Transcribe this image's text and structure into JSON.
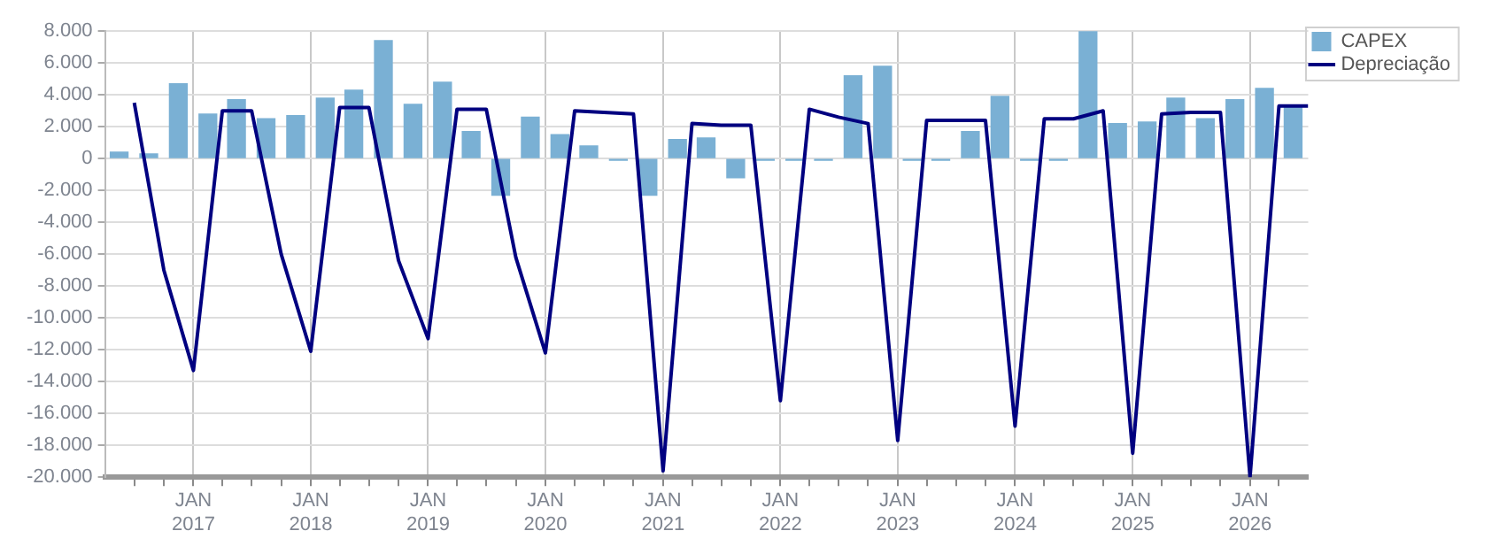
{
  "chart_data": {
    "type": "bar",
    "xlim": [
      "2016-04-01",
      "2026-07-01"
    ],
    "xticks": [
      {
        "value": "2016-07-01",
        "label": null
      },
      {
        "value": "2016-10-01",
        "label": null
      },
      {
        "value": "2017-01-01",
        "label": "JAN\n2017"
      },
      {
        "value": "2017-04-01",
        "label": null
      },
      {
        "value": "2017-07-01",
        "label": null
      },
      {
        "value": "2017-10-01",
        "label": null
      },
      {
        "value": "2018-01-01",
        "label": "JAN\n2018"
      },
      {
        "value": "2018-04-01",
        "label": null
      },
      {
        "value": "2018-07-01",
        "label": null
      },
      {
        "value": "2018-10-01",
        "label": null
      },
      {
        "value": "2019-01-01",
        "label": "JAN\n2019"
      },
      {
        "value": "2019-04-01",
        "label": null
      },
      {
        "value": "2019-07-01",
        "label": null
      },
      {
        "value": "2019-10-01",
        "label": null
      },
      {
        "value": "2020-01-01",
        "label": "JAN\n2020"
      },
      {
        "value": "2020-04-01",
        "label": null
      },
      {
        "value": "2020-07-01",
        "label": null
      },
      {
        "value": "2020-10-01",
        "label": null
      },
      {
        "value": "2021-01-01",
        "label": "JAN\n2021"
      },
      {
        "value": "2021-04-01",
        "label": null
      },
      {
        "value": "2021-07-01",
        "label": null
      },
      {
        "value": "2021-10-01",
        "label": null
      },
      {
        "value": "2022-01-01",
        "label": "JAN\n2022"
      },
      {
        "value": "2022-04-01",
        "label": null
      },
      {
        "value": "2022-07-01",
        "label": null
      },
      {
        "value": "2022-10-01",
        "label": null
      },
      {
        "value": "2023-01-01",
        "label": "JAN\n2023"
      },
      {
        "value": "2023-04-01",
        "label": null
      },
      {
        "value": "2023-07-01",
        "label": null
      },
      {
        "value": "2023-10-01",
        "label": null
      },
      {
        "value": "2024-01-01",
        "label": "JAN\n2024"
      },
      {
        "value": "2024-04-01",
        "label": null
      },
      {
        "value": "2024-07-01",
        "label": null
      },
      {
        "value": "2024-10-01",
        "label": null
      },
      {
        "value": "2025-01-01",
        "label": "JAN\n2025"
      },
      {
        "value": "2025-04-01",
        "label": null
      },
      {
        "value": "2025-07-01",
        "label": null
      },
      {
        "value": "2025-10-01",
        "label": null
      },
      {
        "value": "2026-01-01",
        "label": "JAN\n2026"
      },
      {
        "value": "2026-04-01",
        "label": null
      }
    ],
    "ylim": [
      -20000,
      8000
    ],
    "yticks": [
      {
        "value": -20000,
        "label": "-20.000"
      },
      {
        "value": -18000,
        "label": "-18.000"
      },
      {
        "value": -16000,
        "label": "-16.000"
      },
      {
        "value": -14000,
        "label": "-14.000"
      },
      {
        "value": -12000,
        "label": "-12.000"
      },
      {
        "value": -10000,
        "label": "-10.000"
      },
      {
        "value": -8000,
        "label": "-8.000"
      },
      {
        "value": -6000,
        "label": "-6.000"
      },
      {
        "value": -4000,
        "label": "-4.000"
      },
      {
        "value": -2000,
        "label": "-2.000"
      },
      {
        "value": 0,
        "label": "0"
      },
      {
        "value": 2000,
        "label": "2.000"
      },
      {
        "value": 4000,
        "label": "4.000"
      },
      {
        "value": 6000,
        "label": "6.000"
      },
      {
        "value": 8000,
        "label": "8.000"
      }
    ],
    "grid": true,
    "legend": "top right",
    "marker": "none",
    "series": [
      {
        "name": "CAPEX",
        "color": "#7ab0d4",
        "x": [
          "2016-05-15",
          "2016-08-15",
          "2016-11-15",
          "2017-02-15",
          "2017-05-15",
          "2017-08-15",
          "2017-11-15",
          "2018-02-15",
          "2018-05-15",
          "2018-08-15",
          "2018-11-15",
          "2019-02-15",
          "2019-05-15",
          "2019-08-15",
          "2019-11-15",
          "2020-02-15",
          "2020-05-15",
          "2020-08-15",
          "2020-11-15",
          "2021-02-15",
          "2021-05-15",
          "2021-08-15",
          "2021-11-15",
          "2022-02-15",
          "2022-05-15",
          "2022-08-15",
          "2022-11-15",
          "2023-02-15",
          "2023-05-15",
          "2023-08-15",
          "2023-11-15",
          "2024-02-15",
          "2024-05-15",
          "2024-08-15",
          "2024-11-15",
          "2025-02-15",
          "2025-05-15",
          "2025-08-15",
          "2025-11-15",
          "2026-02-15",
          "2026-05-15"
        ],
        "values": [
          400,
          300,
          4700,
          2800,
          3700,
          2500,
          2700,
          3800,
          4300,
          7400,
          3400,
          4800,
          1700,
          -2300,
          2600,
          1500,
          800,
          -100,
          -2300,
          1200,
          1300,
          -1200,
          -100,
          -100,
          -100,
          5200,
          5800,
          -100,
          -100,
          1700,
          3900,
          -100,
          -100,
          8000,
          2200,
          2300,
          3800,
          2500,
          3700,
          4400,
          3200
        ]
      },
      {
        "name": "Depreciação",
        "type": "line",
        "color": "#000080",
        "x": [
          "2016-07-01",
          "2016-10-01",
          "2017-01-01",
          "2017-04-01",
          "2017-07-01",
          "2017-10-01",
          "2018-01-01",
          "2018-04-01",
          "2018-07-01",
          "2018-10-01",
          "2019-01-01",
          "2019-04-01",
          "2019-07-01",
          "2019-10-01",
          "2020-01-01",
          "2020-04-01",
          "2020-07-01",
          "2020-10-01",
          "2021-01-01",
          "2021-04-01",
          "2021-07-01",
          "2021-10-01",
          "2022-01-01",
          "2022-04-01",
          "2022-07-01",
          "2022-10-01",
          "2023-01-01",
          "2023-04-01",
          "2023-07-01",
          "2023-10-01",
          "2024-01-01",
          "2024-04-01",
          "2024-07-01",
          "2024-10-01",
          "2025-01-01",
          "2025-04-01",
          "2025-07-01",
          "2025-10-01",
          "2026-01-01",
          "2026-04-01",
          "2026-07-01"
        ],
        "values": [
          3500,
          -7000,
          -13300,
          3000,
          3000,
          -6000,
          -12100,
          3200,
          3200,
          -6400,
          -11300,
          3100,
          3100,
          -6200,
          -12200,
          3000,
          2900,
          2800,
          -19600,
          2200,
          2100,
          2100,
          -15200,
          3100,
          2600,
          2200,
          -17700,
          2400,
          2400,
          2400,
          -16800,
          2500,
          2500,
          3000,
          -18500,
          2800,
          2900,
          2900,
          -20000,
          3300,
          3300
        ]
      }
    ]
  }
}
